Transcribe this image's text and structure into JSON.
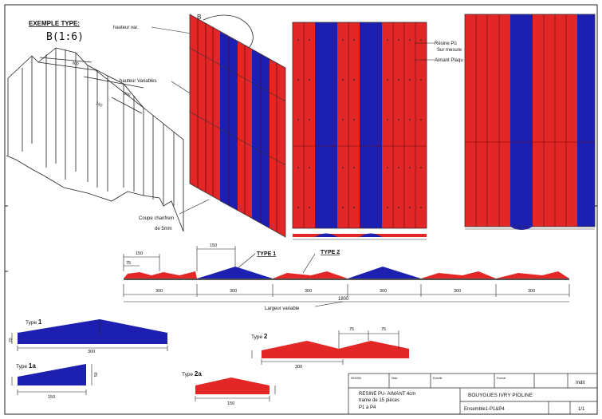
{
  "header": {
    "title": "EXEMPLE TYPE:",
    "scale": "B(1:6)",
    "marker": "B"
  },
  "colors": {
    "red": "#e32626",
    "blue": "#1d1fb0",
    "dark_red": "#7a0d0d",
    "line": "#222222"
  },
  "isometric_labels": {
    "hauteur_var": "hauteur var.",
    "hauteur_variables": "hauteur Variables",
    "coupe": "Coupe chanfrein",
    "coupe2": "de 5mm",
    "dim_a": "300",
    "dim_b": "300",
    "dim_c": "150"
  },
  "elevation_labels": {
    "resine": "Résine Pü",
    "sur_mesure": "Sur mesure",
    "aimant": "Aimant Plaqu"
  },
  "section": {
    "type1": "TYPE 1",
    "type2": "TYPE 2",
    "dim_75": "75",
    "dim_150_a": "150",
    "dim_150_b": "150",
    "segments": [
      "300",
      "300",
      "300",
      "300",
      "300",
      "300"
    ],
    "total": "1800",
    "largeur": "Largeur variable"
  },
  "profiles": {
    "type1_label": "Type",
    "type1_num": "1",
    "type1_dim": "300",
    "type1_h": "20",
    "type1a_label": "Type",
    "type1a_num": "1a",
    "type1a_dim": "150",
    "type1a_h": "50",
    "type2_label": "Type",
    "type2_num": "2",
    "type2_dim": "300",
    "type2_75a": "75",
    "type2_75b": "75",
    "type2a_label": "Type",
    "type2a_num": "2a",
    "type2a_dim": "150"
  },
  "title_block": {
    "cell1": "RESINE PU- AIMANT 4cm",
    "cell1b": "trame de 15 pièces",
    "cell1c": "P1 à P4",
    "client": "BOUYGUES IVRY PIOLINE",
    "ensemble": "Ensemble1-P1&P4",
    "sheet": "1/1",
    "rev": "Indit",
    "small1": "DESSIN",
    "small2": "Date",
    "small3": "Echelle",
    "small4": "Format"
  }
}
